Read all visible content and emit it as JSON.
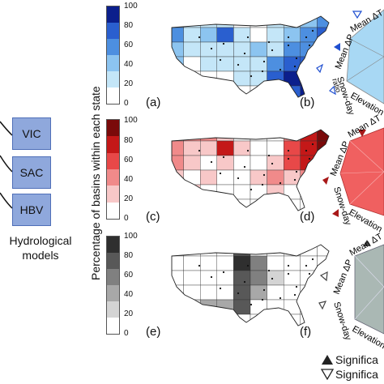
{
  "models": {
    "items": [
      {
        "label": "VIC"
      },
      {
        "label": "SAC"
      },
      {
        "label": "HBV"
      }
    ],
    "caption_line1": "Hydrological",
    "caption_line2": "models"
  },
  "colorbar": {
    "title": "Percentage of basins within each state",
    "ticks": [
      "100",
      "80",
      "60",
      "40",
      "20",
      "0"
    ]
  },
  "panels": {
    "a": "(a)",
    "b": "(b)",
    "c": "(c)",
    "d": "(d)",
    "e": "(e)",
    "f": "(f)"
  },
  "radar": {
    "axis_mean_dp": "Mean ΔP",
    "axis_mean_dt": "Mean ΔT",
    "axis_snow_day": "Snow-day",
    "axis_snow_day_sub": "ratio",
    "axis_elevation": "Elevation"
  },
  "legend": {
    "significant_filled": "Significa",
    "significant_open": "Significa"
  },
  "colors": {
    "blue_scale": [
      "#0b1f8c",
      "#2a5fcf",
      "#4d8fe0",
      "#8cc4f0",
      "#c4e6f8",
      "#ffffff"
    ],
    "red_scale": [
      "#7a0a0a",
      "#c41818",
      "#e84848",
      "#f08a8a",
      "#f8c8c8",
      "#ffffff"
    ],
    "gray_scale": [
      "#2f2f2f",
      "#585858",
      "#808080",
      "#a8a8a8",
      "#d4d4d4",
      "#ffffff"
    ],
    "model_box": "#8fa8dc"
  }
}
